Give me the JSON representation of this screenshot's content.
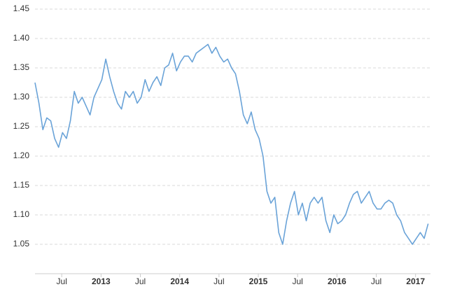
{
  "chart_data": {
    "type": "line",
    "x": [
      2012.16,
      2012.21,
      2012.26,
      2012.31,
      2012.36,
      2012.41,
      2012.46,
      2012.51,
      2012.56,
      2012.61,
      2012.66,
      2012.71,
      2012.76,
      2012.81,
      2012.86,
      2012.91,
      2012.96,
      2013.01,
      2013.06,
      2013.11,
      2013.16,
      2013.21,
      2013.26,
      2013.31,
      2013.36,
      2013.41,
      2013.46,
      2013.51,
      2013.56,
      2013.61,
      2013.66,
      2013.71,
      2013.76,
      2013.81,
      2013.86,
      2013.91,
      2013.96,
      2014.01,
      2014.06,
      2014.11,
      2014.16,
      2014.21,
      2014.26,
      2014.31,
      2014.36,
      2014.41,
      2014.46,
      2014.51,
      2014.56,
      2014.61,
      2014.66,
      2014.71,
      2014.76,
      2014.81,
      2014.86,
      2014.91,
      2014.96,
      2015.01,
      2015.06,
      2015.11,
      2015.16,
      2015.21,
      2015.26,
      2015.31,
      2015.36,
      2015.41,
      2015.46,
      2015.51,
      2015.56,
      2015.61,
      2015.66,
      2015.71,
      2015.76,
      2015.81,
      2015.86,
      2015.91,
      2015.96,
      2016.01,
      2016.06,
      2016.11,
      2016.16,
      2016.21,
      2016.26,
      2016.31,
      2016.36,
      2016.41,
      2016.46,
      2016.51,
      2016.56,
      2016.61,
      2016.66,
      2016.71,
      2016.76,
      2016.81,
      2016.86,
      2016.91,
      2016.96,
      2017.01,
      2017.06,
      2017.11,
      2017.16
    ],
    "series": [
      {
        "color": "#6aa3d8",
        "values": [
          1.325,
          1.29,
          1.245,
          1.265,
          1.26,
          1.23,
          1.215,
          1.24,
          1.23,
          1.26,
          1.31,
          1.29,
          1.3,
          1.285,
          1.27,
          1.3,
          1.315,
          1.33,
          1.365,
          1.335,
          1.31,
          1.29,
          1.28,
          1.31,
          1.3,
          1.31,
          1.29,
          1.3,
          1.33,
          1.31,
          1.325,
          1.335,
          1.32,
          1.35,
          1.355,
          1.375,
          1.345,
          1.36,
          1.37,
          1.37,
          1.36,
          1.375,
          1.38,
          1.385,
          1.39,
          1.375,
          1.385,
          1.37,
          1.36,
          1.365,
          1.35,
          1.34,
          1.31,
          1.27,
          1.255,
          1.275,
          1.245,
          1.23,
          1.2,
          1.14,
          1.12,
          1.13,
          1.07,
          1.05,
          1.09,
          1.12,
          1.14,
          1.1,
          1.12,
          1.09,
          1.12,
          1.13,
          1.12,
          1.13,
          1.09,
          1.07,
          1.1,
          1.085,
          1.09,
          1.1,
          1.12,
          1.135,
          1.14,
          1.12,
          1.13,
          1.14,
          1.12,
          1.11,
          1.11,
          1.12,
          1.125,
          1.12,
          1.1,
          1.09,
          1.07,
          1.06,
          1.05,
          1.06,
          1.07,
          1.06,
          1.085
        ]
      }
    ],
    "xlim": [
      2012.16,
      2017.19
    ],
    "xticks": [
      {
        "value": 2012.5,
        "label": "Jul"
      },
      2013,
      {
        "value": 2013.5,
        "label": "Jul"
      },
      2014,
      {
        "value": 2014.5,
        "label": "Jul"
      },
      2015,
      {
        "value": 2015.5,
        "label": "Jul"
      },
      2016,
      {
        "value": 2016.5,
        "label": "Jul"
      },
      2017
    ],
    "ylim": [
      1.0,
      1.45
    ],
    "yticks": [
      1.05,
      {
        "value": 1.1,
        "label": "1.10"
      },
      1.15,
      {
        "value": 1.2,
        "label": "1.20"
      },
      1.25,
      {
        "value": 1.3,
        "label": "1.30"
      },
      1.35,
      {
        "value": 1.4,
        "label": "1.40"
      },
      1.45
    ],
    "grid": true
  }
}
